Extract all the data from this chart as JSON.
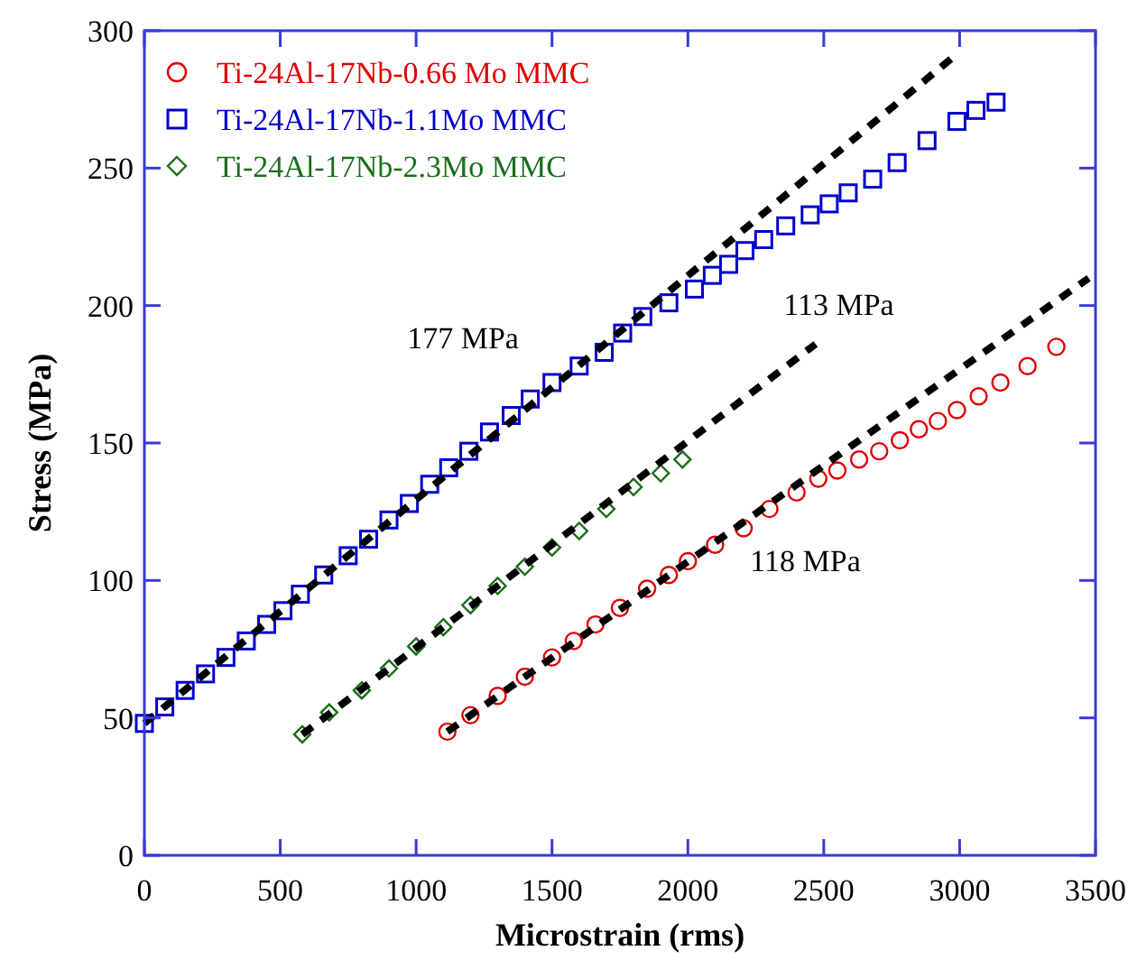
{
  "chart_data": {
    "type": "scatter",
    "xlabel": "Microstrain (rms)",
    "ylabel": "Stress (MPa)",
    "xlim": [
      0,
      3500
    ],
    "xticks": [
      0,
      500,
      1000,
      1500,
      2000,
      2500,
      3000,
      3500
    ],
    "ylim": [
      0,
      300
    ],
    "yticks": [
      0,
      50,
      100,
      150,
      200,
      250,
      300
    ],
    "grid": false,
    "legend": "top left",
    "series": [
      {
        "name": "Ti-24Al-17Nb-0.66 Mo MMC",
        "color": "#e00000",
        "marker": "circle",
        "x": [
          1115,
          1200,
          1300,
          1400,
          1500,
          1580,
          1660,
          1750,
          1850,
          1930,
          2000,
          2100,
          2205,
          2300,
          2400,
          2480,
          2550,
          2630,
          2704,
          2780,
          2850,
          2920,
          2990,
          3070,
          3150,
          3250,
          3356
        ],
        "values": [
          45,
          51,
          58,
          65,
          72,
          78,
          84,
          90,
          97,
          102,
          107,
          113,
          119,
          126,
          132,
          137,
          140,
          144,
          147,
          151,
          155,
          158,
          162,
          167,
          172,
          178,
          185
        ]
      },
      {
        "name": "Ti-24Al-17Nb-1.1Mo MMC",
        "color": "#0000cc",
        "marker": "square",
        "x": [
          0,
          75,
          150,
          225,
          300,
          375,
          450,
          510,
          574,
          660,
          750,
          825,
          900,
          975,
          1050,
          1120,
          1194,
          1270,
          1350,
          1420,
          1500,
          1600,
          1692,
          1760,
          1834,
          1930,
          2024,
          2090,
          2150,
          2210,
          2279,
          2360,
          2450,
          2520,
          2590,
          2680,
          2770,
          2880,
          2990,
          3060,
          3134
        ],
        "values": [
          48,
          54,
          60,
          66,
          72,
          78,
          84,
          89,
          95,
          102,
          109,
          115,
          122,
          128,
          135,
          141,
          147,
          154,
          160,
          166,
          172,
          178,
          183,
          190,
          196,
          201,
          206,
          211,
          215,
          220,
          224,
          229,
          233,
          237,
          241,
          246,
          252,
          260,
          267,
          271,
          274
        ]
      },
      {
        "name": "Ti-24Al-17Nb-2.3Mo MMC",
        "color": "#1a6e1a",
        "marker": "diamond",
        "x": [
          581,
          680,
          800,
          900,
          1000,
          1100,
          1200,
          1300,
          1400,
          1500,
          1600,
          1700,
          1800,
          1900,
          1980
        ],
        "values": [
          44,
          52,
          60,
          68,
          76,
          83,
          91,
          98,
          105,
          112,
          118,
          126,
          134,
          139,
          144
        ]
      },
      {
        "type": "line",
        "color": "#000000",
        "line_style": "dashed",
        "marker": "none",
        "x": [
          1115,
          3475
        ],
        "values": [
          45,
          210
        ]
      },
      {
        "type": "line",
        "color": "#000000",
        "line_style": "dashed",
        "marker": "none",
        "x": [
          0,
          2996
        ],
        "values": [
          48,
          292
        ]
      },
      {
        "type": "line",
        "color": "#000000",
        "line_style": "dashed",
        "marker": "none",
        "x": [
          581,
          2470
        ],
        "values": [
          44,
          186
        ]
      }
    ],
    "annotations": [
      "177 MPa",
      "113 MPa",
      "118 MPa"
    ]
  }
}
